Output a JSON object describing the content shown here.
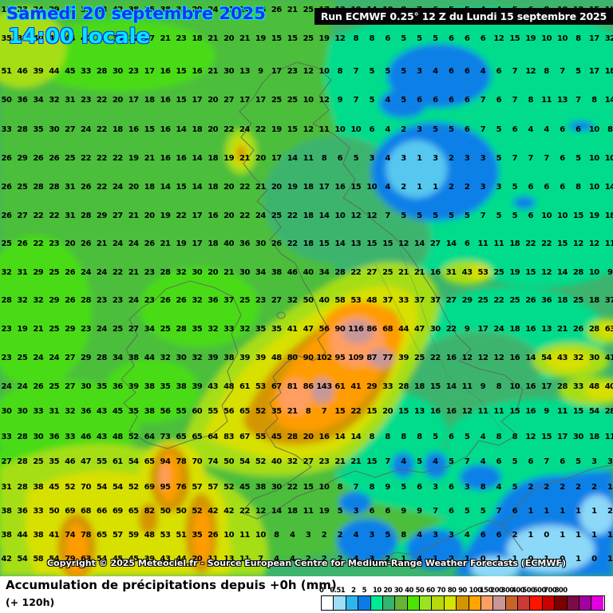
{
  "header": {
    "date_label": "Samedi 20 septembre 2025",
    "time_label": "14:00 locale",
    "run_label": "Run ECMWF 0.25° 12 Z du Lundi 15 septembre 2025"
  },
  "footer": {
    "title": "Accumulation de précipitations depuis +0h (mm)",
    "subtitle": "(+ 120h)",
    "copyright": "Copyright © 2025 Meteociel.fr - Source European Centre for Medium-Range Weather Forecasts (ECMWF)"
  },
  "legend": {
    "labels": [
      "0",
      "0.5",
      "1",
      "2",
      "5",
      "10",
      "20",
      "30",
      "40",
      "50",
      "60",
      "70",
      "80",
      "90",
      "100",
      "150",
      "200",
      "300",
      "400",
      "500",
      "600",
      "700",
      "800"
    ],
    "colors": [
      "#ffffff",
      "#9cdef8",
      "#2cb6f0",
      "#0c7ce4",
      "#00e896",
      "#34b46c",
      "#66b434",
      "#4ae400",
      "#98e41e",
      "#b6d80c",
      "#d4e400",
      "#d49600",
      "#ffa500",
      "#ff9e64",
      "#c89696",
      "#c86428",
      "#cc3a34",
      "#ff1400",
      "#cc0000",
      "#7c0000",
      "#7c0a46",
      "#a400a0",
      "#e000e0"
    ]
  },
  "map": {
    "unit": "mm",
    "grid_values": [
      [
        19,
        23,
        24,
        29,
        33,
        39,
        43,
        42,
        38,
        35,
        38,
        33,
        29,
        24,
        21,
        24,
        25,
        26,
        21,
        25,
        17,
        12,
        19,
        14,
        10,
        8,
        7,
        6,
        5,
        5,
        4,
        4,
        5,
        6,
        8,
        10,
        12,
        15,
        18
      ],
      [
        35,
        38,
        40,
        42,
        44,
        40,
        36,
        34,
        32,
        27,
        21,
        23,
        18,
        21,
        20,
        21,
        19,
        15,
        15,
        25,
        19,
        12,
        8,
        8,
        6,
        5,
        5,
        5,
        6,
        6,
        6,
        12,
        15,
        19,
        10,
        10,
        8,
        17,
        32
      ],
      [
        51,
        46,
        39,
        44,
        45,
        33,
        28,
        30,
        23,
        17,
        16,
        15,
        16,
        21,
        30,
        13,
        9,
        17,
        23,
        12,
        10,
        8,
        7,
        5,
        5,
        5,
        3,
        4,
        6,
        6,
        4,
        6,
        7,
        12,
        8,
        7,
        5,
        17,
        18
      ],
      [
        50,
        36,
        34,
        32,
        31,
        23,
        22,
        20,
        17,
        18,
        16,
        15,
        17,
        20,
        27,
        17,
        17,
        25,
        25,
        10,
        12,
        9,
        7,
        5,
        4,
        5,
        6,
        6,
        6,
        6,
        7,
        6,
        7,
        8,
        11,
        13,
        7,
        8,
        14
      ],
      [
        33,
        28,
        35,
        30,
        27,
        24,
        22,
        18,
        16,
        15,
        16,
        14,
        18,
        20,
        22,
        24,
        22,
        19,
        15,
        12,
        11,
        10,
        10,
        6,
        4,
        2,
        3,
        5,
        5,
        6,
        7,
        5,
        6,
        4,
        4,
        6,
        6,
        10,
        8
      ],
      [
        26,
        29,
        26,
        26,
        25,
        22,
        22,
        22,
        19,
        21,
        16,
        16,
        14,
        18,
        19,
        21,
        20,
        17,
        14,
        11,
        8,
        6,
        5,
        3,
        4,
        3,
        1,
        3,
        2,
        3,
        3,
        5,
        7,
        7,
        7,
        6,
        5,
        10,
        10
      ],
      [
        26,
        25,
        28,
        28,
        31,
        26,
        22,
        24,
        20,
        18,
        14,
        15,
        14,
        18,
        20,
        22,
        21,
        20,
        19,
        18,
        17,
        16,
        15,
        10,
        4,
        2,
        1,
        1,
        2,
        2,
        3,
        3,
        5,
        6,
        6,
        6,
        8,
        10,
        14
      ],
      [
        26,
        27,
        22,
        22,
        31,
        28,
        29,
        27,
        21,
        20,
        19,
        22,
        17,
        16,
        20,
        22,
        24,
        25,
        22,
        18,
        14,
        10,
        12,
        12,
        7,
        5,
        5,
        5,
        5,
        5,
        7,
        5,
        5,
        6,
        10,
        10,
        15,
        19,
        18
      ],
      [
        25,
        26,
        22,
        23,
        20,
        26,
        21,
        24,
        24,
        26,
        21,
        19,
        17,
        18,
        40,
        36,
        30,
        26,
        22,
        18,
        15,
        14,
        13,
        15,
        15,
        12,
        14,
        27,
        14,
        6,
        11,
        11,
        18,
        22,
        22,
        15,
        12,
        12,
        11
      ],
      [
        32,
        31,
        29,
        25,
        26,
        24,
        24,
        22,
        21,
        23,
        28,
        32,
        30,
        20,
        21,
        30,
        34,
        38,
        46,
        40,
        34,
        28,
        22,
        27,
        25,
        21,
        21,
        16,
        31,
        43,
        53,
        25,
        19,
        15,
        12,
        14,
        28,
        10,
        9
      ],
      [
        28,
        32,
        32,
        29,
        26,
        28,
        23,
        23,
        24,
        23,
        26,
        26,
        32,
        36,
        37,
        25,
        23,
        27,
        32,
        50,
        40,
        58,
        53,
        48,
        37,
        33,
        37,
        37,
        27,
        29,
        25,
        22,
        25,
        26,
        36,
        18,
        25,
        18,
        37
      ],
      [
        23,
        19,
        21,
        25,
        29,
        23,
        24,
        25,
        27,
        34,
        25,
        28,
        35,
        32,
        33,
        32,
        35,
        35,
        41,
        47,
        56,
        90,
        116,
        86,
        68,
        44,
        47,
        30,
        22,
        9,
        17,
        24,
        18,
        16,
        13,
        21,
        26,
        28,
        63
      ],
      [
        23,
        25,
        24,
        24,
        27,
        29,
        28,
        34,
        38,
        44,
        32,
        30,
        32,
        39,
        38,
        39,
        39,
        48,
        80,
        90,
        102,
        95,
        109,
        87,
        77,
        39,
        25,
        22,
        16,
        12,
        12,
        12,
        16,
        14,
        54,
        43,
        32,
        30,
        41
      ],
      [
        24,
        24,
        26,
        25,
        27,
        30,
        35,
        36,
        39,
        38,
        35,
        38,
        39,
        43,
        48,
        61,
        53,
        67,
        81,
        86,
        143,
        61,
        41,
        29,
        33,
        28,
        18,
        15,
        14,
        11,
        9,
        8,
        10,
        16,
        17,
        28,
        33,
        48,
        40
      ],
      [
        30,
        30,
        33,
        31,
        32,
        36,
        43,
        45,
        35,
        38,
        56,
        55,
        60,
        55,
        56,
        65,
        52,
        35,
        21,
        8,
        7,
        15,
        22,
        15,
        20,
        15,
        13,
        16,
        16,
        12,
        11,
        11,
        15,
        16,
        9,
        11,
        15,
        54,
        28
      ],
      [
        33,
        28,
        30,
        36,
        33,
        46,
        43,
        48,
        52,
        64,
        73,
        65,
        65,
        64,
        83,
        67,
        55,
        45,
        28,
        20,
        16,
        14,
        14,
        8,
        8,
        8,
        8,
        5,
        6,
        5,
        4,
        8,
        8,
        12,
        15,
        17,
        30,
        18,
        11
      ],
      [
        27,
        28,
        25,
        35,
        46,
        47,
        55,
        61,
        54,
        65,
        94,
        78,
        70,
        74,
        50,
        54,
        52,
        40,
        32,
        27,
        23,
        21,
        21,
        15,
        7,
        4,
        5,
        4,
        5,
        7,
        4,
        6,
        5,
        6,
        7,
        6,
        5,
        3,
        3
      ],
      [
        31,
        28,
        38,
        45,
        52,
        70,
        54,
        54,
        52,
        69,
        95,
        76,
        57,
        57,
        52,
        45,
        38,
        30,
        22,
        15,
        10,
        8,
        7,
        8,
        9,
        5,
        6,
        3,
        6,
        3,
        8,
        4,
        5,
        2,
        2,
        2,
        2,
        2,
        1
      ],
      [
        38,
        36,
        33,
        50,
        69,
        68,
        66,
        69,
        65,
        82,
        50,
        50,
        52,
        42,
        42,
        22,
        12,
        14,
        18,
        11,
        19,
        5,
        3,
        6,
        6,
        9,
        9,
        7,
        6,
        5,
        5,
        7,
        6,
        1,
        1,
        1,
        1,
        1,
        2
      ],
      [
        38,
        44,
        38,
        41,
        74,
        78,
        65,
        57,
        59,
        48,
        53,
        51,
        35,
        26,
        10,
        11,
        10,
        8,
        4,
        3,
        2,
        2,
        4,
        3,
        5,
        8,
        4,
        3,
        3,
        4,
        6,
        6,
        2,
        1,
        0,
        1,
        1,
        1,
        1
      ],
      [
        42,
        54,
        58,
        54,
        79,
        63,
        54,
        45,
        45,
        39,
        43,
        44,
        20,
        11,
        13,
        11,
        7,
        4,
        4,
        2,
        2,
        2,
        4,
        3,
        2,
        1,
        4,
        1,
        2,
        1,
        0,
        1,
        1,
        0,
        1,
        0,
        1,
        0,
        1
      ]
    ]
  }
}
